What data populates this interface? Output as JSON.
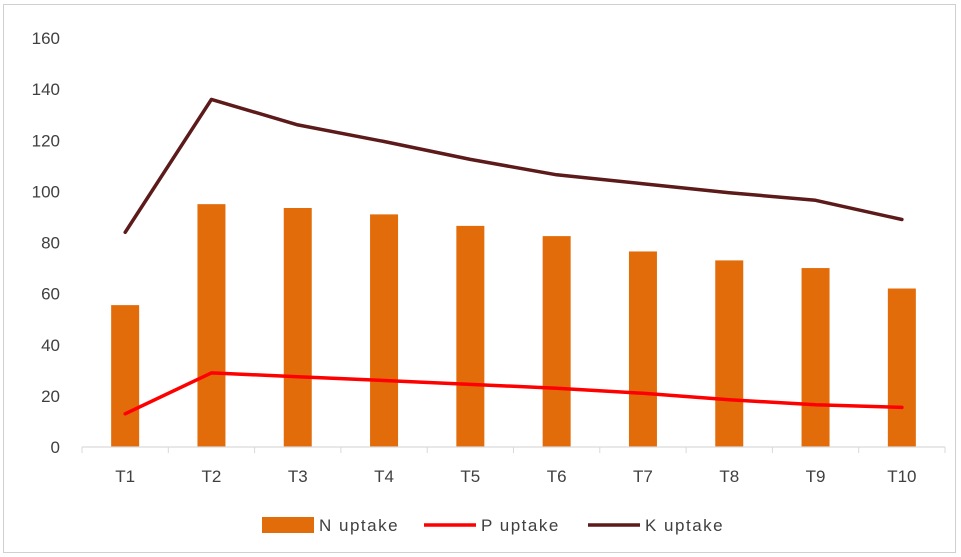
{
  "chart_data": {
    "type": "bar",
    "categories": [
      "T1",
      "T2",
      "T3",
      "T4",
      "T5",
      "T6",
      "T7",
      "T8",
      "T9",
      "T10"
    ],
    "series": [
      {
        "name": "N uptake",
        "type": "bar",
        "color": "#e36c0a",
        "values": [
          55.5,
          95,
          93.5,
          91,
          86.5,
          82.5,
          76.5,
          73,
          70,
          62
        ]
      },
      {
        "name": "P uptake",
        "type": "line",
        "color": "#ff0000",
        "values": [
          13,
          29,
          27.5,
          26,
          24.5,
          23,
          21,
          18.5,
          16.5,
          15.5
        ]
      },
      {
        "name": "K uptake",
        "type": "line",
        "color": "#5c1a1a",
        "values": [
          84,
          136,
          126,
          119.5,
          112.5,
          106.5,
          103,
          99.5,
          96.5,
          89
        ]
      }
    ],
    "title": "",
    "xlabel": "",
    "ylabel": "",
    "ylim": [
      0,
      160
    ],
    "yticks": [
      0,
      20,
      40,
      60,
      80,
      100,
      120,
      140,
      160
    ],
    "grid": false,
    "legend_position": "bottom"
  }
}
